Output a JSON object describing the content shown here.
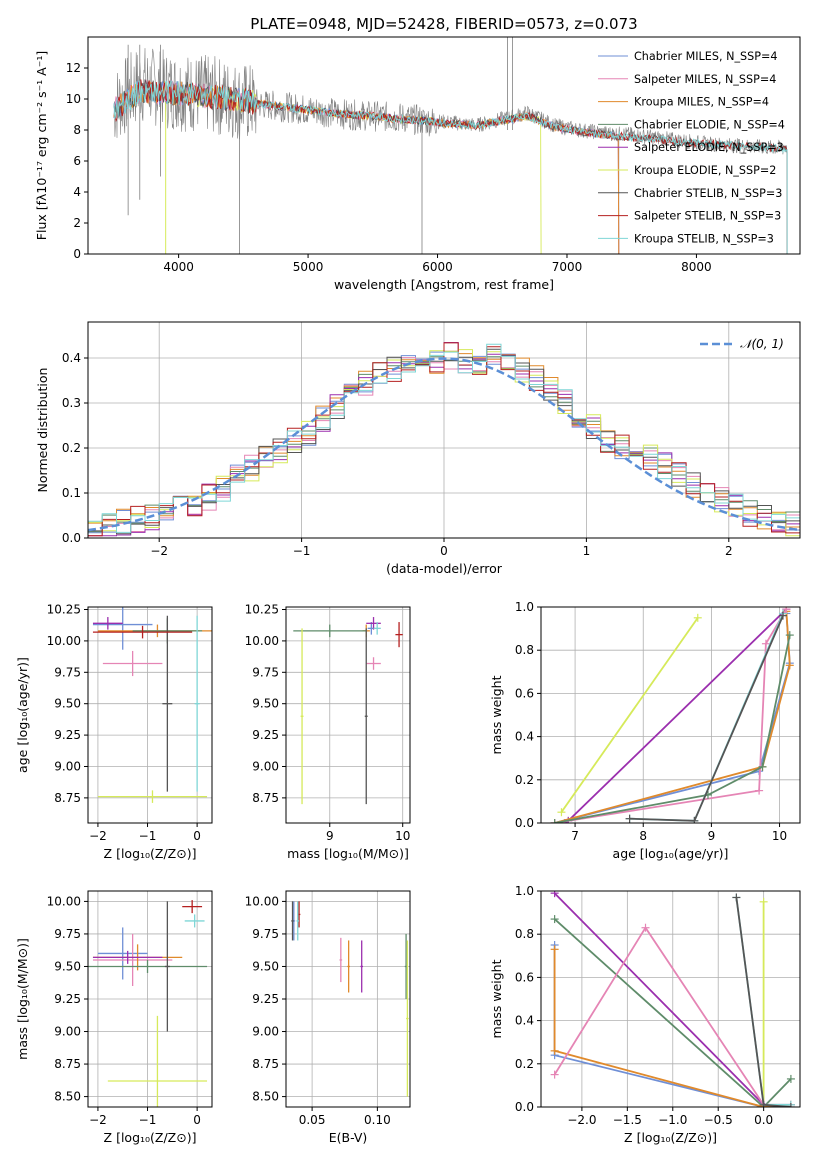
{
  "colors": {
    "chabrier_miles": "#6f8fd6",
    "salpeter_miles": "#e585b5",
    "kroupa_miles": "#e08a2c",
    "chabrier_elodie": "#5f8c6a",
    "salpeter_elodie": "#9b2fae",
    "kroupa_elodie": "#d6ea5a",
    "chabrier_stelib": "#555555",
    "salpeter_stelib": "#b52020",
    "kroupa_stelib": "#7fd6d6",
    "data_spectrum": "#7f7f7f",
    "normal_curve": "#5b8fd6"
  },
  "chart_data": [
    {
      "type": "line",
      "title": "PLATE=0948, MJD=52428, FIBERID=0573, z=0.073",
      "xlabel": "wavelength [Angstrom, rest frame]",
      "ylabel": "Flux [fλ10⁻¹⁷ erg cm⁻² s⁻¹ A⁻¹]",
      "xlim": [
        3300,
        8800
      ],
      "ylim": [
        0,
        14
      ],
      "xticks": [
        4000,
        5000,
        6000,
        7000,
        8000
      ],
      "yticks": [
        0,
        2,
        4,
        6,
        8,
        10,
        12
      ],
      "legend": [
        "Chabrier MILES, N_SSP=4",
        "Salpeter MILES, N_SSP=4",
        "Kroupa MILES, N_SSP=4",
        "Chabrier ELODIE, N_SSP=4",
        "Salpeter ELODIE, N_SSP=3",
        "Kroupa ELODIE, N_SSP=2",
        "Chabrier STELIB, N_SSP=3",
        "Salpeter STELIB, N_SSP=3",
        "Kroupa STELIB, N_SSP=3"
      ],
      "legend_placement": "upper-right",
      "data_spectrum": {
        "x": [
          3500,
          3700,
          3900,
          4100,
          4300,
          4500,
          4700,
          4900,
          5100,
          5300,
          5500,
          5700,
          5900,
          6100,
          6300,
          6500,
          6700,
          6900,
          7100,
          7300,
          7500,
          7700,
          7900,
          8100,
          8300,
          8500,
          8700
        ],
        "y": [
          9.5,
          11.0,
          10.6,
          10.4,
          10.2,
          9.8,
          9.6,
          9.4,
          9.2,
          9.0,
          8.9,
          8.8,
          8.6,
          8.5,
          8.3,
          8.7,
          9.1,
          8.3,
          8.0,
          7.8,
          7.7,
          7.5,
          7.3,
          7.1,
          7.0,
          6.9,
          6.8
        ]
      },
      "model_spectrum": {
        "x": [
          3500,
          3700,
          3900,
          4100,
          4300,
          4500,
          4700,
          4900,
          5100,
          5300,
          5500,
          5700,
          5900,
          6100,
          6300,
          6500,
          6700,
          6900,
          7100,
          7300,
          7500,
          7700,
          7900,
          8100,
          8300,
          8500,
          8700
        ],
        "y": [
          9.3,
          10.5,
          10.4,
          10.3,
          10.1,
          9.9,
          9.6,
          9.4,
          9.2,
          9.0,
          8.9,
          8.7,
          8.6,
          8.4,
          8.3,
          8.6,
          8.9,
          8.2,
          7.9,
          7.7,
          7.5,
          7.4,
          7.2,
          7.1,
          7.0,
          6.9,
          6.8
        ]
      },
      "model_ranges": [
        {
          "series": "Kroupa ELODIE, N_SSP=2",
          "x": [
            3900,
            6800
          ]
        },
        {
          "series": "Chabrier MILES, N_SSP=4",
          "x": [
            3500,
            7400
          ]
        },
        {
          "series": "Salpeter MILES, N_SSP=4",
          "x": [
            3500,
            7400
          ]
        },
        {
          "series": "Kroupa MILES, N_SSP=4",
          "x": [
            3500,
            7400
          ]
        },
        {
          "series": "Chabrier STELIB, N_SSP=3",
          "x": [
            3500,
            8700
          ]
        },
        {
          "series": "Salpeter STELIB, N_SSP=3",
          "x": [
            3500,
            8700
          ]
        },
        {
          "series": "Kroupa STELIB, N_SSP=3",
          "x": [
            3500,
            8700
          ]
        }
      ]
    },
    {
      "type": "histogram",
      "xlabel": "(data-model)/error",
      "ylabel": "Normed distribution",
      "xlim": [
        -2.5,
        2.5
      ],
      "ylim": [
        0,
        0.48
      ],
      "xticks": [
        -2,
        -1,
        0,
        1,
        2
      ],
      "yticks": [
        0.0,
        0.1,
        0.2,
        0.3,
        0.4
      ],
      "legend": [
        "𝒩(0, 1)"
      ],
      "legend_placement": "upper-right",
      "bin_width": 0.1,
      "bin_start": -2.5,
      "reference": [
        0.022,
        0.03,
        0.035,
        0.042,
        0.048,
        0.055,
        0.065,
        0.078,
        0.09,
        0.11,
        0.135,
        0.155,
        0.18,
        0.195,
        0.215,
        0.235,
        0.265,
        0.29,
        0.32,
        0.345,
        0.36,
        0.375,
        0.385,
        0.39,
        0.395,
        0.405,
        0.395,
        0.39,
        0.41,
        0.395,
        0.375,
        0.355,
        0.335,
        0.305,
        0.275,
        0.245,
        0.22,
        0.205,
        0.195,
        0.18,
        0.16,
        0.14,
        0.12,
        0.1,
        0.085,
        0.07,
        0.055,
        0.045,
        0.035,
        0.028
      ],
      "normal_curve": {
        "mu": 0,
        "sigma": 1
      }
    },
    {
      "type": "scatter",
      "xlabel": "Z [log₁₀(Z/Z⊙)]",
      "ylabel": "age  [log₁₀(age/yr)]",
      "xlim": [
        -2.2,
        0.3
      ],
      "ylim": [
        8.55,
        10.27
      ],
      "xticks": [
        -2,
        -1,
        0
      ],
      "yticks": [
        8.75,
        9.0,
        9.25,
        9.5,
        9.75,
        10.0,
        10.25
      ],
      "points": [
        {
          "series": "Chabrier MILES, N_SSP=4",
          "x": -1.5,
          "y": 10.13,
          "xerr": 0.6,
          "yerr": 0.2
        },
        {
          "series": "Salpeter MILES, N_SSP=4",
          "x": -1.3,
          "y": 9.82,
          "xerr": 0.6,
          "yerr": 0.1
        },
        {
          "series": "Kroupa MILES, N_SSP=4",
          "x": -0.8,
          "y": 10.08,
          "xerr": 1.2,
          "yerr": 0.05
        },
        {
          "series": "Chabrier ELODIE, N_SSP=4",
          "x": -0.6,
          "y": 10.08,
          "xerr": 0.7,
          "yerr": 0.1
        },
        {
          "series": "Salpeter ELODIE, N_SSP=3",
          "x": -1.8,
          "y": 10.14,
          "xerr": 0.3,
          "yerr": 0.05
        },
        {
          "series": "Kroupa ELODIE, N_SSP=2",
          "x": -0.9,
          "y": 8.76,
          "xerr": 1.1,
          "yerr": 0.05
        },
        {
          "series": "Chabrier STELIB, N_SSP=3",
          "x": -0.6,
          "y": 9.5,
          "xerr": 0.1,
          "yerr": 0.7
        },
        {
          "series": "Salpeter STELIB, N_SSP=3",
          "x": -1.1,
          "y": 10.07,
          "xerr": 1.0,
          "yerr": 0.05
        },
        {
          "series": "Kroupa STELIB, N_SSP=3",
          "x": 0.0,
          "y": 9.5,
          "xerr": 0.05,
          "yerr": 0.7
        }
      ]
    },
    {
      "type": "scatter",
      "xlabel": "mass [log₁₀(M/M⊙)]",
      "ylabel": "",
      "xlim": [
        8.4,
        10.1
      ],
      "ylim": [
        8.55,
        10.27
      ],
      "xticks": [
        9,
        10
      ],
      "yticks": [
        8.75,
        9.0,
        9.25,
        9.5,
        9.75,
        10.0,
        10.25
      ],
      "points": [
        {
          "series": "Chabrier MILES, N_SSP=4",
          "x": 9.57,
          "y": 10.1,
          "xerr": 0.05,
          "yerr": 0.05
        },
        {
          "series": "Salpeter MILES, N_SSP=4",
          "x": 9.6,
          "y": 9.82,
          "xerr": 0.1,
          "yerr": 0.05
        },
        {
          "series": "Kroupa MILES, N_SSP=4",
          "x": 9.5,
          "y": 10.08,
          "xerr": 0.05,
          "yerr": 0.05
        },
        {
          "series": "Chabrier ELODIE, N_SSP=4",
          "x": 9.0,
          "y": 10.08,
          "xerr": 0.5,
          "yerr": 0.05
        },
        {
          "series": "Salpeter ELODIE, N_SSP=3",
          "x": 9.6,
          "y": 10.14,
          "xerr": 0.1,
          "yerr": 0.05
        },
        {
          "series": "Kroupa ELODIE, N_SSP=2",
          "x": 8.62,
          "y": 9.4,
          "xerr": 0.02,
          "yerr": 0.7
        },
        {
          "series": "Chabrier STELIB, N_SSP=3",
          "x": 9.5,
          "y": 9.4,
          "xerr": 0.02,
          "yerr": 0.7
        },
        {
          "series": "Salpeter STELIB, N_SSP=3",
          "x": 9.95,
          "y": 10.05,
          "xerr": 0.05,
          "yerr": 0.1
        },
        {
          "series": "Kroupa STELIB, N_SSP=3",
          "x": 9.65,
          "y": 10.1,
          "xerr": 0.05,
          "yerr": 0.05
        }
      ]
    },
    {
      "type": "line",
      "xlabel": "age  [log₁₀(age/yr)]",
      "ylabel": "mass weight",
      "xlim": [
        6.5,
        10.3
      ],
      "ylim": [
        0,
        1
      ],
      "xticks": [
        7,
        8,
        9,
        10
      ],
      "yticks": [
        0.0,
        0.2,
        0.4,
        0.6,
        0.8,
        1.0
      ],
      "series": [
        {
          "name": "Kroupa ELODIE, N_SSP=2",
          "x": [
            6.8,
            8.8
          ],
          "y": [
            0.05,
            0.95
          ]
        },
        {
          "name": "Salpeter ELODIE, N_SSP=3",
          "x": [
            6.85,
            6.9,
            10.1
          ],
          "y": [
            0.0,
            0.01,
            0.99
          ]
        },
        {
          "name": "Chabrier MILES, N_SSP=4",
          "x": [
            6.7,
            9.7,
            10.15,
            10.1
          ],
          "y": [
            0.0,
            0.24,
            0.74,
            0.97
          ]
        },
        {
          "name": "Kroupa MILES, N_SSP=4",
          "x": [
            6.7,
            9.75,
            10.15,
            10.1
          ],
          "y": [
            0.0,
            0.26,
            0.73,
            0.98
          ]
        },
        {
          "name": "Salpeter MILES, N_SSP=4",
          "x": [
            6.7,
            9.7,
            9.8,
            10.1
          ],
          "y": [
            0.0,
            0.15,
            0.83,
            0.99
          ]
        },
        {
          "name": "Chabrier ELODIE, N_SSP=4",
          "x": [
            6.7,
            8.95,
            9.75,
            10.15
          ],
          "y": [
            0.0,
            0.13,
            0.26,
            0.87
          ]
        },
        {
          "name": "Kroupa STELIB, N_SSP=3",
          "x": [
            7.8,
            8.75,
            10.05
          ],
          "y": [
            0.02,
            0.01,
            0.97
          ]
        },
        {
          "name": "Chabrier STELIB, N_SSP=3",
          "x": [
            7.8,
            8.75,
            10.05
          ],
          "y": [
            0.02,
            0.01,
            0.96
          ]
        }
      ]
    },
    {
      "type": "scatter",
      "xlabel": "Z [log₁₀(Z/Z⊙)]",
      "ylabel": "mass [log₁₀(M/M⊙)]",
      "xlim": [
        -2.2,
        0.3
      ],
      "ylim": [
        8.42,
        10.08
      ],
      "xticks": [
        -2,
        -1,
        0
      ],
      "yticks": [
        8.5,
        8.75,
        9.0,
        9.25,
        9.5,
        9.75,
        10.0
      ],
      "points": [
        {
          "series": "Chabrier MILES, N_SSP=4",
          "x": -1.5,
          "y": 9.6,
          "xerr": 0.5,
          "yerr": 0.2
        },
        {
          "series": "Salpeter MILES, N_SSP=4",
          "x": -1.3,
          "y": 9.55,
          "xerr": 0.8,
          "yerr": 0.2
        },
        {
          "series": "Kroupa MILES, N_SSP=4",
          "x": -1.2,
          "y": 9.57,
          "xerr": 0.9,
          "yerr": 0.1
        },
        {
          "series": "Chabrier ELODIE, N_SSP=4",
          "x": -1.0,
          "y": 9.5,
          "xerr": 1.2,
          "yerr": 0.05
        },
        {
          "series": "Salpeter ELODIE, N_SSP=3",
          "x": -1.4,
          "y": 9.57,
          "xerr": 0.7,
          "yerr": 0.05
        },
        {
          "series": "Kroupa ELODIE, N_SSP=2",
          "x": -0.8,
          "y": 8.62,
          "xerr": 1.0,
          "yerr": 0.5
        },
        {
          "series": "Chabrier STELIB, N_SSP=3",
          "x": -0.6,
          "y": 9.5,
          "xerr": 0.05,
          "yerr": 0.5
        },
        {
          "series": "Salpeter STELIB, N_SSP=3",
          "x": -0.1,
          "y": 9.96,
          "xerr": 0.2,
          "yerr": 0.05
        },
        {
          "series": "Kroupa STELIB, N_SSP=3",
          "x": -0.05,
          "y": 9.85,
          "xerr": 0.2,
          "yerr": 0.05
        }
      ]
    },
    {
      "type": "scatter",
      "xlabel": "E(B-V)",
      "ylabel": "",
      "xlim": [
        0.03,
        0.125
      ],
      "ylim": [
        8.42,
        10.08
      ],
      "xticks": [
        0.05,
        0.1
      ],
      "yticks": [
        8.5,
        8.75,
        9.0,
        9.25,
        9.5,
        9.75,
        10.0
      ],
      "points": [
        {
          "series": "Chabrier MILES, N_SSP=4",
          "x": 0.036,
          "y": 9.85,
          "xerr": 0.001,
          "yerr": 0.15
        },
        {
          "series": "Salpeter MILES, N_SSP=4",
          "x": 0.072,
          "y": 9.55,
          "xerr": 0.001,
          "yerr": 0.17
        },
        {
          "series": "Kroupa MILES, N_SSP=4",
          "x": 0.078,
          "y": 9.5,
          "xerr": 0.001,
          "yerr": 0.2
        },
        {
          "series": "Chabrier ELODIE, N_SSP=4",
          "x": 0.122,
          "y": 9.5,
          "xerr": 0.001,
          "yerr": 0.25
        },
        {
          "series": "Salpeter ELODIE, N_SSP=3",
          "x": 0.088,
          "y": 9.5,
          "xerr": 0.001,
          "yerr": 0.2
        },
        {
          "series": "Kroupa ELODIE, N_SSP=2",
          "x": 0.123,
          "y": 9.1,
          "xerr": 0.001,
          "yerr": 0.6
        },
        {
          "series": "Chabrier STELIB, N_SSP=3",
          "x": 0.035,
          "y": 9.85,
          "xerr": 0.001,
          "yerr": 0.15
        },
        {
          "series": "Salpeter STELIB, N_SSP=3",
          "x": 0.04,
          "y": 9.9,
          "xerr": 0.001,
          "yerr": 0.1
        },
        {
          "series": "Kroupa STELIB, N_SSP=3",
          "x": 0.039,
          "y": 9.85,
          "xerr": 0.001,
          "yerr": 0.15
        }
      ]
    },
    {
      "type": "line",
      "xlabel": "Z [log₁₀(Z/Z⊙)]",
      "ylabel": "mass weight",
      "xlim": [
        -2.45,
        0.4
      ],
      "ylim": [
        0,
        1
      ],
      "xticks": [
        -2.0,
        -1.5,
        -1.0,
        -0.5,
        0.0
      ],
      "yticks": [
        0.0,
        0.2,
        0.4,
        0.6,
        0.8,
        1.0
      ],
      "series": [
        {
          "name": "Kroupa ELODIE, N_SSP=2",
          "x": [
            0.0,
            0.0
          ],
          "y": [
            0.0,
            0.95
          ]
        },
        {
          "name": "Salpeter ELODIE, N_SSP=3",
          "x": [
            -2.3,
            0.0,
            0.01
          ],
          "y": [
            0.99,
            0.01,
            0.0
          ]
        },
        {
          "name": "Chabrier ELODIE, N_SSP=4",
          "x": [
            -2.3,
            0.0,
            0.3
          ],
          "y": [
            0.87,
            0.0,
            0.13
          ]
        },
        {
          "name": "Chabrier MILES, N_SSP=4",
          "x": [
            -2.3,
            -2.3,
            0.0,
            0.3
          ],
          "y": [
            0.75,
            0.24,
            0.0,
            0.01
          ]
        },
        {
          "name": "Kroupa MILES, N_SSP=4",
          "x": [
            -2.3,
            -2.3,
            0.0,
            0.3
          ],
          "y": [
            0.73,
            0.26,
            0.0,
            0.01
          ]
        },
        {
          "name": "Salpeter MILES, N_SSP=4",
          "x": [
            -2.3,
            -1.3,
            0.0,
            0.3
          ],
          "y": [
            0.15,
            0.83,
            0.01,
            0.01
          ]
        },
        {
          "name": "Kroupa STELIB, N_SSP=3",
          "x": [
            -0.3,
            0.0,
            0.3
          ],
          "y": [
            0.97,
            0.01,
            0.01
          ]
        },
        {
          "name": "Chabrier STELIB, N_SSP=3",
          "x": [
            -0.3,
            0.0,
            0.3
          ],
          "y": [
            0.97,
            0.01,
            0.0
          ]
        }
      ]
    }
  ]
}
